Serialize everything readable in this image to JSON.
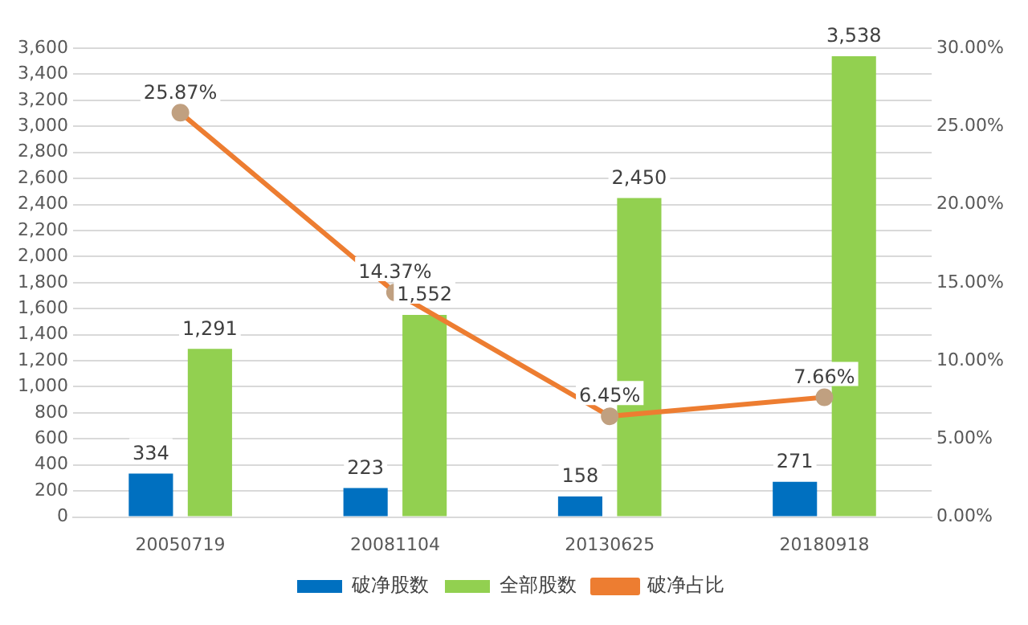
{
  "chart_data": {
    "type": "bar",
    "categories": [
      "20050719",
      "20081104",
      "20130625",
      "20180918"
    ],
    "series": [
      {
        "name": "破净股数",
        "color": "#0070c0",
        "values": [
          334,
          223,
          158,
          271
        ],
        "value_labels": [
          "334",
          "223",
          "158",
          "271"
        ]
      },
      {
        "name": "全部股数",
        "color": "#92d050",
        "values": [
          1291,
          1552,
          2450,
          3538
        ],
        "value_labels": [
          "1,291",
          "1,552",
          "2,450",
          "3,538"
        ]
      },
      {
        "name": "破净占比",
        "type": "line",
        "axis": "y2",
        "color": "#ed7d31",
        "values": [
          25.87,
          14.37,
          6.45,
          7.66
        ],
        "value_labels": [
          "25.87%",
          "14.37%",
          "6.45%",
          "7.66%"
        ]
      }
    ],
    "ylim": [
      0,
      3600
    ],
    "yticks": [
      0,
      {
        "value": 200,
        "label": "200"
      },
      {
        "value": 400,
        "label": "400"
      },
      {
        "value": 600,
        "label": "600"
      },
      {
        "value": 800,
        "label": "800"
      },
      {
        "value": 1000,
        "label": "1,000"
      },
      {
        "value": 1200,
        "label": "1,200"
      },
      {
        "value": 1400,
        "label": "1,400"
      },
      {
        "value": 1600,
        "label": "1,600"
      },
      {
        "value": 1800,
        "label": "1,800"
      },
      {
        "value": 2000,
        "label": "2,000"
      },
      {
        "value": 2200,
        "label": "2,200"
      },
      {
        "value": 2400,
        "label": "2,400"
      },
      {
        "value": 2600,
        "label": "2,600"
      },
      {
        "value": 2800,
        "label": "2,800"
      },
      {
        "value": 3000,
        "label": "3,000"
      },
      {
        "value": 3200,
        "label": "3,200"
      },
      {
        "value": 3400,
        "label": "3,400"
      },
      {
        "value": 3600,
        "label": "3,600"
      }
    ],
    "y2lim": [
      0,
      30
    ],
    "y2ticks": [
      {
        "value": 0,
        "label": "0.00%"
      },
      {
        "value": 5,
        "label": "5.00%"
      },
      {
        "value": 10,
        "label": "10.00%"
      },
      {
        "value": 15,
        "label": "15.00%"
      },
      {
        "value": 20,
        "label": "20.00%"
      },
      {
        "value": 25,
        "label": "25.00%"
      },
      {
        "value": 30,
        "label": "30.00%"
      }
    ],
    "grid": "y",
    "legend": "bottom",
    "marker": "circle",
    "line_style": "solid"
  }
}
